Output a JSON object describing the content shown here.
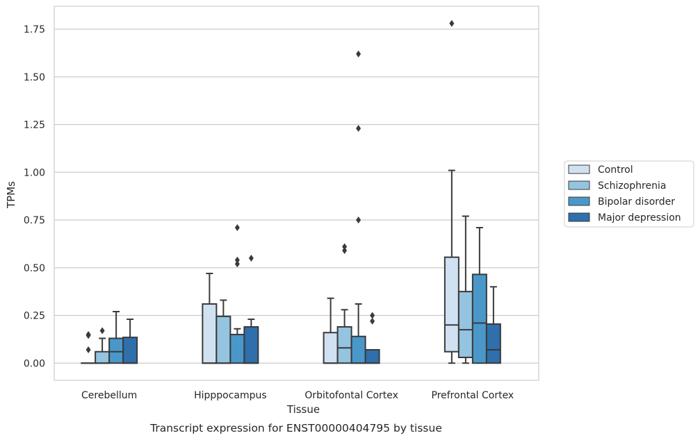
{
  "caption": "Transcript expression for ENST00000404795 by tissue",
  "chart_data": {
    "type": "box",
    "xlabel": "Tissue",
    "ylabel": "TPMs",
    "ylim": [
      -0.09,
      1.87
    ],
    "yticks": [
      0.0,
      0.25,
      0.5,
      0.75,
      1.0,
      1.25,
      1.5,
      1.75
    ],
    "ytick_labels": [
      "0.00",
      "0.25",
      "0.50",
      "0.75",
      "1.00",
      "1.25",
      "1.50",
      "1.75"
    ],
    "grid": true,
    "legend_position": "right",
    "categories": [
      "Cerebellum",
      "Hipppocampus",
      "Orbitofontal Cortex",
      "Prefrontal Cortex"
    ],
    "series": [
      {
        "name": "Control",
        "color": "#d0e1f2",
        "boxes": [
          {
            "min": 0.0,
            "q1": 0.0,
            "median": 0.0,
            "q3": 0.0,
            "max": 0.0,
            "outliers": [
              0.07,
              0.145,
              0.15
            ]
          },
          {
            "min": 0.0,
            "q1": 0.0,
            "median": 0.0,
            "q3": 0.31,
            "max": 0.47,
            "outliers": []
          },
          {
            "min": 0.0,
            "q1": 0.0,
            "median": 0.0,
            "q3": 0.16,
            "max": 0.34,
            "outliers": []
          },
          {
            "min": 0.0,
            "q1": 0.06,
            "median": 0.2,
            "q3": 0.555,
            "max": 1.01,
            "outliers": [
              1.78
            ]
          }
        ]
      },
      {
        "name": "Schizophrenia",
        "color": "#94c4df",
        "boxes": [
          {
            "min": 0.0,
            "q1": 0.0,
            "median": 0.0,
            "q3": 0.06,
            "max": 0.13,
            "outliers": [
              0.17
            ]
          },
          {
            "min": 0.0,
            "q1": 0.0,
            "median": 0.0,
            "q3": 0.245,
            "max": 0.33,
            "outliers": []
          },
          {
            "min": 0.0,
            "q1": 0.0,
            "median": 0.08,
            "q3": 0.19,
            "max": 0.28,
            "outliers": [
              0.59,
              0.61
            ]
          },
          {
            "min": 0.0,
            "q1": 0.03,
            "median": 0.175,
            "q3": 0.375,
            "max": 0.77,
            "outliers": []
          }
        ]
      },
      {
        "name": "Bipolar disorder",
        "color": "#4a98c9",
        "boxes": [
          {
            "min": 0.0,
            "q1": 0.0,
            "median": 0.06,
            "q3": 0.13,
            "max": 0.27,
            "outliers": []
          },
          {
            "min": 0.0,
            "q1": 0.0,
            "median": 0.15,
            "q3": 0.15,
            "max": 0.18,
            "outliers": [
              0.52,
              0.54,
              0.71
            ]
          },
          {
            "min": 0.0,
            "q1": 0.0,
            "median": 0.0,
            "q3": 0.14,
            "max": 0.31,
            "outliers": [
              0.75,
              1.23,
              1.62
            ]
          },
          {
            "min": 0.0,
            "q1": 0.0,
            "median": 0.21,
            "q3": 0.465,
            "max": 0.71,
            "outliers": []
          }
        ]
      },
      {
        "name": "Major depression",
        "color": "#2e6fac",
        "boxes": [
          {
            "min": 0.0,
            "q1": 0.0,
            "median": 0.0,
            "q3": 0.135,
            "max": 0.23,
            "outliers": []
          },
          {
            "min": 0.0,
            "q1": 0.0,
            "median": 0.0,
            "q3": 0.19,
            "max": 0.23,
            "outliers": [
              0.55
            ]
          },
          {
            "min": 0.0,
            "q1": 0.0,
            "median": 0.0,
            "q3": 0.07,
            "max": 0.07,
            "outliers": [
              0.22,
              0.25
            ]
          },
          {
            "min": 0.0,
            "q1": 0.0,
            "median": 0.07,
            "q3": 0.205,
            "max": 0.4,
            "outliers": []
          }
        ]
      }
    ]
  }
}
